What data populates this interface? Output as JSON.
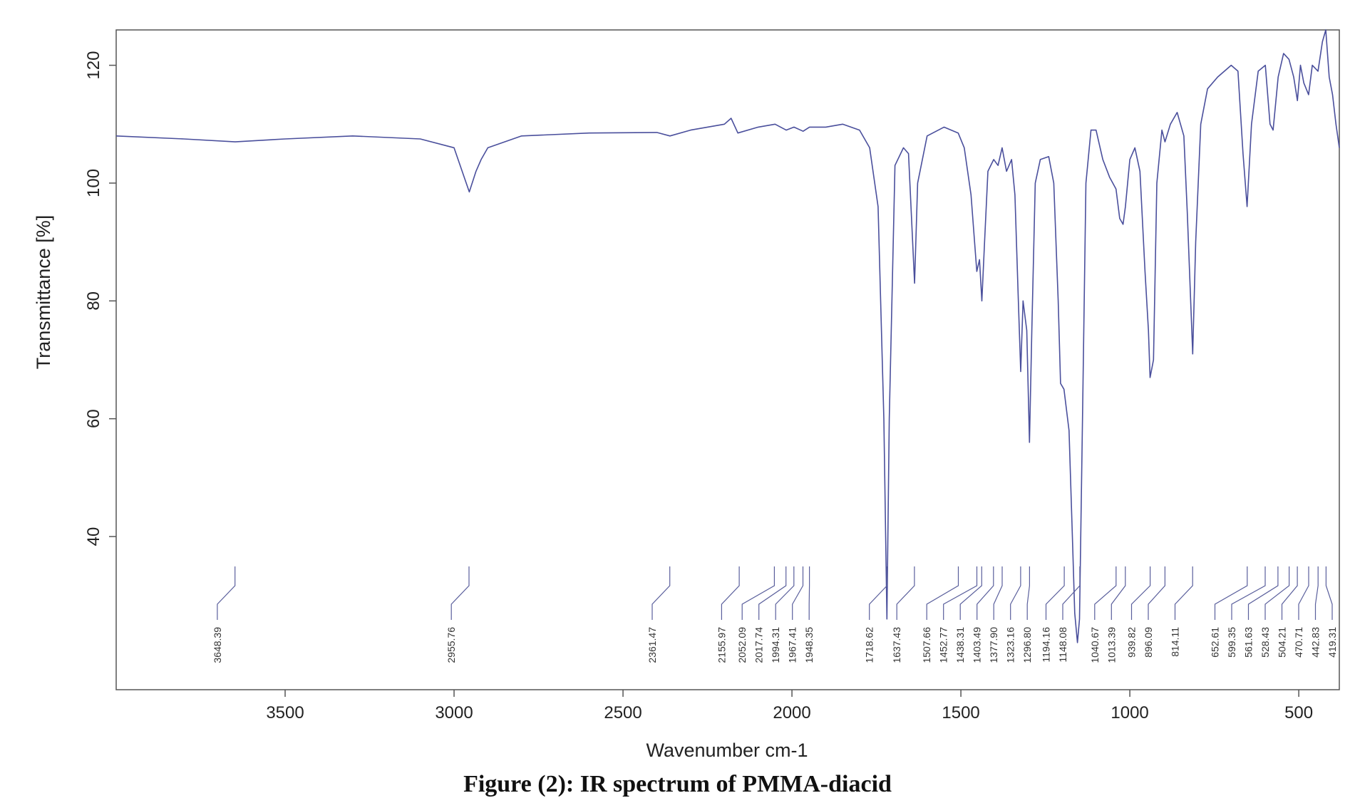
{
  "caption": "Figure (2): IR spectrum of PMMA-diacid",
  "chart_data": {
    "type": "line",
    "xlabel": "Wavenumber cm-1",
    "ylabel": "Transmittance [%]",
    "xlim": [
      4000,
      380
    ],
    "ylim": [
      14,
      126
    ],
    "xticks": [
      3500,
      3000,
      2500,
      2000,
      1500,
      1000,
      500
    ],
    "yticks": [
      40,
      60,
      80,
      100,
      120
    ],
    "line_color": "#4a4f9c",
    "grid": false,
    "series": [
      {
        "points": [
          [
            4000,
            108
          ],
          [
            3800,
            107.5
          ],
          [
            3648,
            107
          ],
          [
            3500,
            107.5
          ],
          [
            3300,
            108
          ],
          [
            3100,
            107.5
          ],
          [
            3000,
            106
          ],
          [
            2955,
            98.5
          ],
          [
            2935,
            102
          ],
          [
            2920,
            104
          ],
          [
            2900,
            106
          ],
          [
            2800,
            108
          ],
          [
            2600,
            108.5
          ],
          [
            2400,
            108.6
          ],
          [
            2361,
            108
          ],
          [
            2300,
            109
          ],
          [
            2200,
            110
          ],
          [
            2180,
            111
          ],
          [
            2160,
            108.5
          ],
          [
            2100,
            109.5
          ],
          [
            2050,
            110
          ],
          [
            2017,
            109
          ],
          [
            1994,
            109.5
          ],
          [
            1967,
            108.8
          ],
          [
            1948,
            109.5
          ],
          [
            1900,
            109.5
          ],
          [
            1850,
            110
          ],
          [
            1800,
            109
          ],
          [
            1770,
            106
          ],
          [
            1745,
            96
          ],
          [
            1728,
            60
          ],
          [
            1719,
            26
          ],
          [
            1712,
            60
          ],
          [
            1695,
            103
          ],
          [
            1670,
            106
          ],
          [
            1655,
            105
          ],
          [
            1637,
            83
          ],
          [
            1628,
            100
          ],
          [
            1600,
            108
          ],
          [
            1550,
            109.5
          ],
          [
            1508,
            108.5
          ],
          [
            1490,
            106
          ],
          [
            1470,
            98
          ],
          [
            1453,
            85
          ],
          [
            1445,
            87
          ],
          [
            1438,
            80
          ],
          [
            1430,
            90
          ],
          [
            1420,
            102
          ],
          [
            1403,
            104
          ],
          [
            1390,
            103
          ],
          [
            1378,
            106
          ],
          [
            1365,
            102
          ],
          [
            1350,
            104
          ],
          [
            1340,
            98
          ],
          [
            1330,
            80
          ],
          [
            1323,
            68
          ],
          [
            1316,
            80
          ],
          [
            1305,
            75
          ],
          [
            1297,
            56
          ],
          [
            1290,
            75
          ],
          [
            1280,
            100
          ],
          [
            1265,
            104
          ],
          [
            1240,
            104.5
          ],
          [
            1225,
            100
          ],
          [
            1212,
            80
          ],
          [
            1205,
            66
          ],
          [
            1195,
            65
          ],
          [
            1180,
            58
          ],
          [
            1170,
            40
          ],
          [
            1163,
            27
          ],
          [
            1155,
            22
          ],
          [
            1149,
            26
          ],
          [
            1140,
            60
          ],
          [
            1130,
            100
          ],
          [
            1115,
            109
          ],
          [
            1100,
            109
          ],
          [
            1080,
            104
          ],
          [
            1060,
            101
          ],
          [
            1041,
            99
          ],
          [
            1030,
            94
          ],
          [
            1020,
            93
          ],
          [
            1013,
            96
          ],
          [
            1000,
            104
          ],
          [
            985,
            106
          ],
          [
            970,
            102
          ],
          [
            955,
            85
          ],
          [
            945,
            75
          ],
          [
            940,
            67
          ],
          [
            930,
            70
          ],
          [
            920,
            100
          ],
          [
            905,
            109
          ],
          [
            896,
            107
          ],
          [
            880,
            110
          ],
          [
            860,
            112
          ],
          [
            840,
            108
          ],
          [
            830,
            95
          ],
          [
            814,
            71
          ],
          [
            805,
            90
          ],
          [
            790,
            110
          ],
          [
            770,
            116
          ],
          [
            740,
            118
          ],
          [
            700,
            120
          ],
          [
            680,
            119
          ],
          [
            665,
            105
          ],
          [
            653,
            96
          ],
          [
            640,
            110
          ],
          [
            620,
            119
          ],
          [
            599,
            120
          ],
          [
            585,
            110
          ],
          [
            576,
            109
          ],
          [
            561,
            118
          ],
          [
            545,
            122
          ],
          [
            529,
            121
          ],
          [
            515,
            118
          ],
          [
            504,
            114
          ],
          [
            495,
            120
          ],
          [
            485,
            117
          ],
          [
            471,
            115
          ],
          [
            460,
            120
          ],
          [
            443,
            119
          ],
          [
            430,
            124
          ],
          [
            420,
            126
          ],
          [
            410,
            118
          ],
          [
            400,
            115
          ],
          [
            390,
            110
          ],
          [
            380,
            106
          ]
        ]
      }
    ],
    "peak_labels": [
      "3648.39",
      "2955.76",
      "2361.47",
      "2155.97",
      "2052.09",
      "2017.74",
      "1994.31",
      "1967.41",
      "1948.35",
      "1718.62",
      "1637.43",
      "1507.66",
      "1452.77",
      "1438.31",
      "1403.49",
      "1377.90",
      "1323.16",
      "1296.80",
      "1194.16",
      "1148.08",
      "1040.67",
      "1013.39",
      "939.82",
      "896.09",
      "814.11",
      "652.61",
      "599.35",
      "561.63",
      "528.43",
      "504.21",
      "470.71",
      "442.83",
      "419.31"
    ],
    "peak_values": [
      3648.39,
      2955.76,
      2361.47,
      2155.97,
      2052.09,
      2017.74,
      1994.31,
      1967.41,
      1948.35,
      1718.62,
      1637.43,
      1507.66,
      1452.77,
      1438.31,
      1403.49,
      1377.9,
      1323.16,
      1296.8,
      1194.16,
      1148.08,
      1040.67,
      1013.39,
      939.82,
      896.09,
      814.11,
      652.61,
      599.35,
      561.63,
      528.43,
      504.21,
      470.71,
      442.83,
      419.31
    ]
  }
}
